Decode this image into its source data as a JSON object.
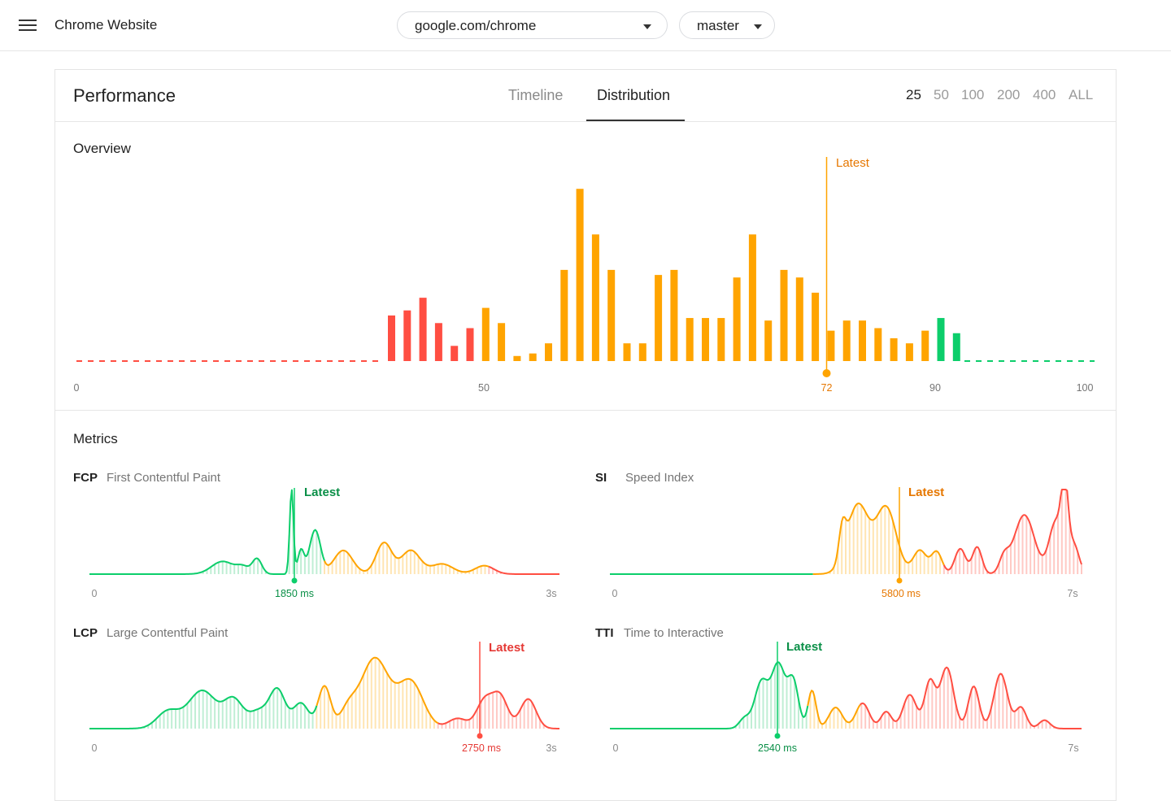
{
  "app": {
    "title": "Chrome Website"
  },
  "header": {
    "url_select": {
      "value": "google.com/chrome"
    },
    "branch_select": {
      "value": "master"
    }
  },
  "card": {
    "title": "Performance",
    "tabs": [
      {
        "label": "Timeline",
        "active": false
      },
      {
        "label": "Distribution",
        "active": true
      }
    ],
    "counts": [
      {
        "label": "25",
        "active": true
      },
      {
        "label": "50"
      },
      {
        "label": "100"
      },
      {
        "label": "200"
      },
      {
        "label": "400"
      },
      {
        "label": "ALL"
      }
    ]
  },
  "colors": {
    "red": "#ff4e42",
    "orange": "#ffa400",
    "green": "#0cce6b",
    "latest_orange": "#e67700",
    "latest_red": "#e53935",
    "latest_green": "#0a8f47"
  },
  "overview": {
    "label": "Overview",
    "latest_label": "Latest",
    "latest_value": "72",
    "axis_labels": [
      "0",
      "50",
      "90",
      "100"
    ]
  },
  "metrics_label": "Metrics",
  "metrics": [
    {
      "code": "FCP",
      "name": "First Contentful Paint",
      "latest_label": "Latest",
      "latest_value": "1850 ms",
      "min_label": "0",
      "max_label": "3s"
    },
    {
      "code": "SI",
      "name": "Speed Index",
      "latest_label": "Latest",
      "latest_value": "5800 ms",
      "min_label": "0",
      "max_label": "7s"
    },
    {
      "code": "LCP",
      "name": "Large Contentful Paint",
      "latest_label": "Latest",
      "latest_value": "2750 ms",
      "min_label": "0",
      "max_label": "3s"
    },
    {
      "code": "TTI",
      "name": "Time to Interactive",
      "latest_label": "Latest",
      "latest_value": "2540 ms",
      "min_label": "0",
      "max_label": "7s"
    }
  ],
  "chart_data": [
    {
      "type": "bar",
      "x": [
        39,
        40,
        41,
        42,
        43,
        44,
        45,
        46,
        47,
        48,
        49,
        50,
        51,
        52,
        53,
        54,
        55,
        56,
        57,
        58,
        59,
        60,
        61,
        62,
        63,
        64,
        65,
        66,
        67,
        68,
        69,
        70,
        71,
        72,
        73,
        74,
        75,
        76,
        77,
        78,
        79,
        80,
        81
      ],
      "values": [
        9,
        10,
        12.5,
        7.5,
        3,
        6.5,
        10.5,
        7.5,
        1,
        1.5,
        3.5,
        18,
        34,
        25,
        18,
        3.5,
        3.5,
        17,
        18,
        8.5,
        8.5,
        8.5,
        16.5,
        25,
        8,
        18,
        16.5,
        13.5,
        6,
        8,
        8,
        6.5,
        4.5,
        3.5,
        6,
        8.5,
        5.5,
        0,
        0,
        0,
        0,
        0,
        0
      ],
      "ylim": [
        0,
        35
      ],
      "xlim": [
        0,
        100
      ]
    },
    {
      "type": "area",
      "xlim": [
        0,
        3
      ],
      "peaks": [
        [
          0.85,
          0.15,
          0.07
        ],
        [
          0.98,
          0.08,
          0.04
        ],
        [
          1.07,
          0.18,
          0.03
        ],
        [
          1.29,
          1.0,
          0.012
        ],
        [
          1.35,
          0.28,
          0.02
        ],
        [
          1.44,
          0.52,
          0.035
        ],
        [
          1.62,
          0.28,
          0.06
        ],
        [
          1.88,
          0.37,
          0.05
        ],
        [
          2.05,
          0.28,
          0.06
        ],
        [
          2.25,
          0.12,
          0.07
        ],
        [
          2.52,
          0.1,
          0.06
        ]
      ]
    },
    {
      "type": "area",
      "xlim": [
        0,
        7
      ],
      "peaks": [
        [
          3.45,
          0.36,
          0.05
        ],
        [
          3.68,
          0.82,
          0.16
        ],
        [
          4.1,
          0.78,
          0.15
        ],
        [
          4.6,
          0.28,
          0.1
        ],
        [
          4.85,
          0.26,
          0.08
        ],
        [
          5.2,
          0.3,
          0.08
        ],
        [
          5.45,
          0.32,
          0.07
        ],
        [
          5.85,
          0.18,
          0.07
        ],
        [
          6.15,
          0.7,
          0.15
        ],
        [
          6.62,
          0.62,
          0.1
        ],
        [
          6.75,
          0.85,
          0.05
        ],
        [
          6.88,
          0.35,
          0.08
        ]
      ]
    },
    {
      "type": "area",
      "xlim": [
        0,
        3
      ],
      "peaks": [
        [
          0.5,
          0.2,
          0.07
        ],
        [
          0.72,
          0.45,
          0.09
        ],
        [
          0.92,
          0.33,
          0.06
        ],
        [
          1.08,
          0.2,
          0.06
        ],
        [
          1.2,
          0.45,
          0.05
        ],
        [
          1.35,
          0.3,
          0.05
        ],
        [
          1.5,
          0.5,
          0.04
        ],
        [
          1.65,
          0.2,
          0.05
        ],
        [
          1.82,
          0.83,
          0.09
        ],
        [
          2.05,
          0.55,
          0.08
        ],
        [
          2.35,
          0.12,
          0.06
        ],
        [
          2.52,
          0.32,
          0.05
        ],
        [
          2.62,
          0.38,
          0.05
        ],
        [
          2.8,
          0.35,
          0.05
        ]
      ]
    },
    {
      "type": "area",
      "xlim": [
        0,
        7
      ],
      "peaks": [
        [
          2.0,
          0.12,
          0.08
        ],
        [
          2.25,
          0.55,
          0.1
        ],
        [
          2.5,
          0.75,
          0.1
        ],
        [
          2.72,
          0.55,
          0.08
        ],
        [
          3.0,
          0.45,
          0.06
        ],
        [
          3.35,
          0.25,
          0.1
        ],
        [
          3.75,
          0.3,
          0.1
        ],
        [
          4.1,
          0.2,
          0.08
        ],
        [
          4.45,
          0.4,
          0.1
        ],
        [
          4.75,
          0.55,
          0.08
        ],
        [
          5.0,
          0.72,
          0.1
        ],
        [
          5.4,
          0.5,
          0.08
        ],
        [
          5.8,
          0.65,
          0.1
        ],
        [
          6.1,
          0.25,
          0.08
        ],
        [
          6.45,
          0.1,
          0.08
        ]
      ]
    }
  ]
}
